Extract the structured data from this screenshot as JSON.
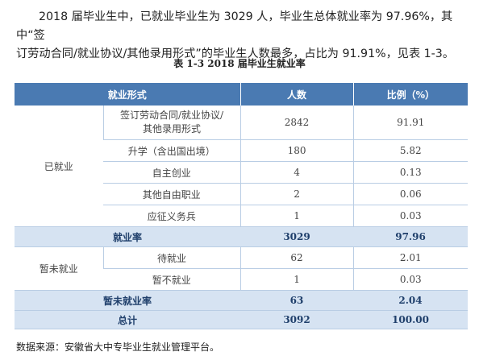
{
  "intro": {
    "line1": "2018 届毕业生中，已就业毕业生为 3029 人，毕业生总体就业率为 97.96%，其中“签",
    "line2": "订劳动合同/就业协议/其他录用形式”的毕业生人数最多，占比为 91.91%，见表 1-3。"
  },
  "table": {
    "caption": "表 1-3    2018 届毕业生就业率",
    "headers": [
      "就业形式",
      "人数",
      "比例（%）"
    ],
    "group_employed": "已就业",
    "employed_rows": [
      {
        "form_l1": "签订劳动合同/就业协议/",
        "form_l2": "其他录用形式",
        "count": "2842",
        "ratio": "91.91"
      },
      {
        "form": "升学（含出国出境）",
        "count": "180",
        "ratio": "5.82"
      },
      {
        "form": "自主创业",
        "count": "4",
        "ratio": "0.13"
      },
      {
        "form": "其他自由职业",
        "count": "2",
        "ratio": "0.06"
      },
      {
        "form": "应征义务兵",
        "count": "1",
        "ratio": "0.03"
      }
    ],
    "employed_summary": {
      "label": "就业率",
      "count": "3029",
      "ratio": "97.96"
    },
    "group_unemployed": "暂未就业",
    "unemployed_rows": [
      {
        "form": "待就业",
        "count": "62",
        "ratio": "2.01"
      },
      {
        "form": "暂不就业",
        "count": "1",
        "ratio": "0.03"
      }
    ],
    "unemployed_summary": {
      "label": "暂未就业率",
      "count": "63",
      "ratio": "2.04"
    },
    "total": {
      "label": "总计",
      "count": "3092",
      "ratio": "100.00"
    }
  },
  "source": "数据来源：安徽省大中专毕业生就业管理平台。",
  "colors": {
    "header": "#4a7ab2",
    "summary": "#d6e3f2",
    "grid": "#b9cde4"
  }
}
